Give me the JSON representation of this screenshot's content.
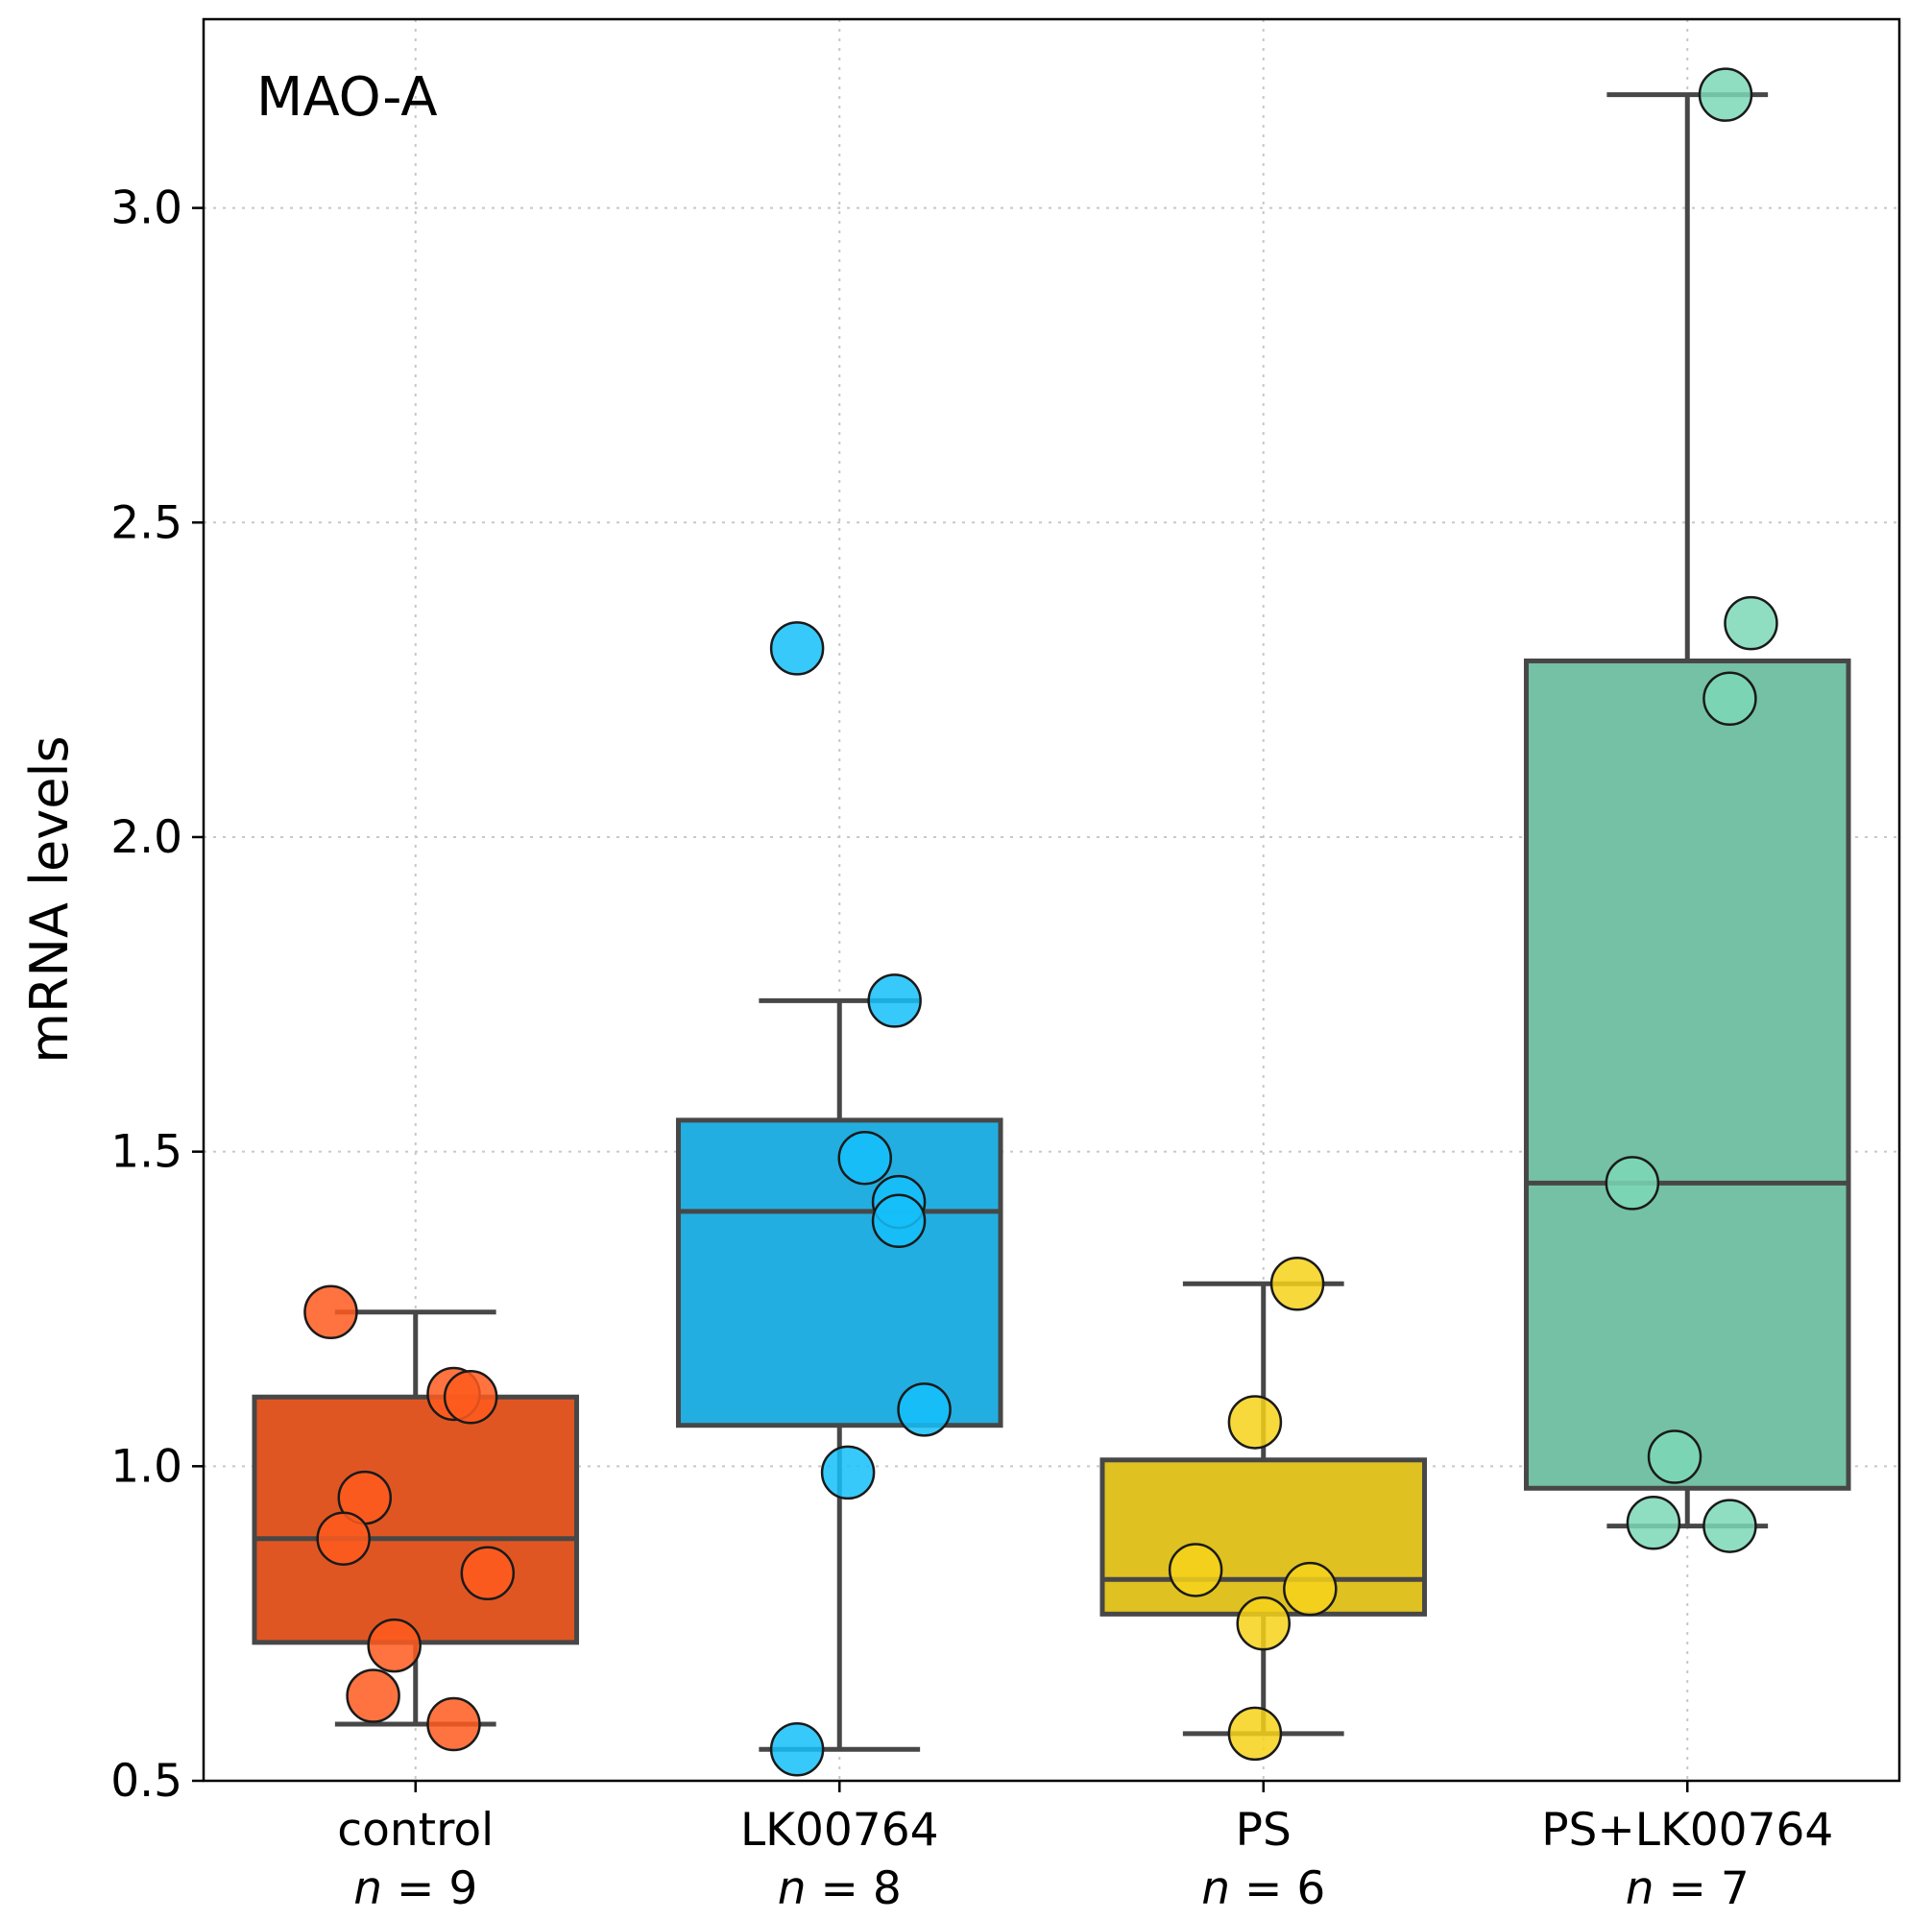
{
  "chart_data": {
    "type": "box",
    "title": "MAO-A",
    "ylabel": "mRNA levels",
    "xlabel": "",
    "ylim": [
      0.5,
      3.3
    ],
    "yticks": [
      0.5,
      1.0,
      1.5,
      2.0,
      2.5,
      3.0
    ],
    "ytick_labels": [
      "0.5",
      "1.0",
      "1.5",
      "2.0",
      "2.5",
      "3.0"
    ],
    "grid": true,
    "categories": [
      "control",
      "LK00764",
      "PS",
      "PS+LK00764"
    ],
    "groups": [
      {
        "name": "control",
        "n_prefix": "n",
        "n_sep": "=",
        "n_value": "9",
        "box_color": "#e05623",
        "point_color": "#ff5a1f",
        "whisker_low": 0.59,
        "q1": 0.72,
        "median": 0.885,
        "q3": 1.11,
        "whisker_high": 1.245,
        "points": [
          {
            "x": -0.2,
            "y": 1.245
          },
          {
            "x": 0.09,
            "y": 1.115
          },
          {
            "x": 0.13,
            "y": 1.11
          },
          {
            "x": -0.12,
            "y": 0.95
          },
          {
            "x": -0.17,
            "y": 0.885
          },
          {
            "x": 0.17,
            "y": 0.83
          },
          {
            "x": -0.05,
            "y": 0.715
          },
          {
            "x": -0.1,
            "y": 0.635
          },
          {
            "x": 0.09,
            "y": 0.59
          }
        ]
      },
      {
        "name": "LK00764",
        "n_prefix": "n",
        "n_sep": "=",
        "n_value": "8",
        "box_color": "#22aee0",
        "point_color": "#15c0fa",
        "whisker_low": 0.55,
        "q1": 1.065,
        "median": 1.405,
        "q3": 1.55,
        "whisker_high": 1.74,
        "points": [
          {
            "x": -0.1,
            "y": 2.3
          },
          {
            "x": 0.13,
            "y": 1.74
          },
          {
            "x": 0.06,
            "y": 1.49
          },
          {
            "x": 0.14,
            "y": 1.42
          },
          {
            "x": 0.14,
            "y": 1.39
          },
          {
            "x": 0.2,
            "y": 1.09
          },
          {
            "x": 0.02,
            "y": 0.99
          },
          {
            "x": -0.1,
            "y": 0.55
          }
        ]
      },
      {
        "name": "PS",
        "n_prefix": "n",
        "n_sep": "=",
        "n_value": "6",
        "box_color": "#dfc122",
        "point_color": "#f7d21a",
        "whisker_low": 0.575,
        "q1": 0.765,
        "median": 0.82,
        "q3": 1.01,
        "whisker_high": 1.29,
        "points": [
          {
            "x": 0.08,
            "y": 1.29
          },
          {
            "x": -0.02,
            "y": 1.07
          },
          {
            "x": -0.16,
            "y": 0.835
          },
          {
            "x": 0.11,
            "y": 0.805
          },
          {
            "x": 0.0,
            "y": 0.75
          },
          {
            "x": -0.02,
            "y": 0.575
          }
        ]
      },
      {
        "name": "PS+LK00764",
        "n_prefix": "n",
        "n_sep": "=",
        "n_value": "7",
        "box_color": "#74c1a5",
        "point_color": "#7dd8b7",
        "whisker_low": 0.905,
        "q1": 0.965,
        "median": 1.45,
        "q3": 2.28,
        "whisker_high": 3.18,
        "points": [
          {
            "x": 0.09,
            "y": 3.18
          },
          {
            "x": 0.15,
            "y": 2.34
          },
          {
            "x": 0.1,
            "y": 2.22
          },
          {
            "x": -0.13,
            "y": 1.45
          },
          {
            "x": -0.03,
            "y": 1.015
          },
          {
            "x": -0.08,
            "y": 0.91
          },
          {
            "x": 0.1,
            "y": 0.905
          }
        ]
      }
    ]
  }
}
